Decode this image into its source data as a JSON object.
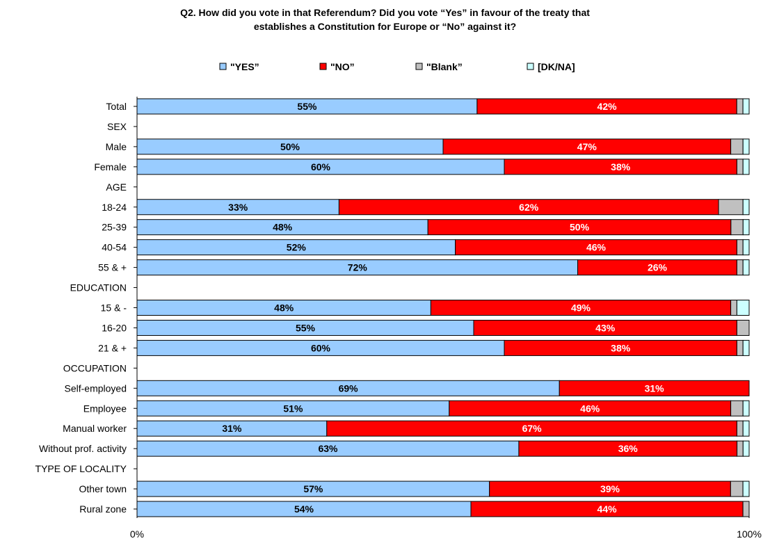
{
  "title_line1": "Q2. How did you vote in that Referendum? Did you vote “Yes” in favour of the treaty that",
  "title_line2": "establishes a Constitution for Europe or “No” against it?",
  "chart_data": {
    "type": "bar",
    "orientation": "horizontal",
    "stacked": true,
    "legend_position": "top",
    "categories": [
      "Total",
      "SEX",
      "Male",
      "Female",
      "AGE",
      "18-24",
      "25-39",
      "40-54",
      "55 & +",
      "EDUCATION",
      "15 & -",
      "16-20",
      "21 & +",
      "OCCUPATION",
      "Self-employed",
      "Employee",
      "Manual worker",
      "Without prof. activity",
      "TYPE OF LOCALITY",
      "Other town",
      "Rural zone"
    ],
    "series": [
      {
        "name": "\"YES”",
        "color": "#99ccff",
        "values": [
          55,
          null,
          50,
          60,
          null,
          33,
          48,
          52,
          72,
          null,
          48,
          55,
          60,
          null,
          69,
          51,
          31,
          63,
          null,
          57,
          54
        ]
      },
      {
        "name": "\"NO”",
        "color": "#ff0000",
        "values": [
          42,
          null,
          47,
          38,
          null,
          62,
          50,
          46,
          26,
          null,
          49,
          43,
          38,
          null,
          31,
          46,
          67,
          36,
          null,
          39,
          44
        ]
      },
      {
        "name": "\"Blank”",
        "color": "#c0c0c0",
        "values": [
          1,
          null,
          2,
          1,
          null,
          4,
          2,
          1,
          1,
          null,
          1,
          2,
          1,
          null,
          0,
          2,
          1,
          1,
          null,
          2,
          1
        ]
      },
      {
        "name": "[DK/NA]",
        "color": "#ccffff",
        "values": [
          1,
          null,
          1,
          1,
          null,
          1,
          1,
          1,
          1,
          null,
          2,
          0,
          1,
          null,
          0,
          1,
          1,
          1,
          null,
          1,
          0
        ]
      }
    ],
    "data_labels": {
      "YES": [
        "55%",
        "",
        "50%",
        "60%",
        "",
        "33%",
        "48%",
        "52%",
        "72%",
        "",
        "48%",
        "55%",
        "60%",
        "",
        "69%",
        "51%",
        "31%",
        "63%",
        "",
        "57%",
        "54%"
      ],
      "NO": [
        "42%",
        "",
        "47%",
        "38%",
        "",
        "62%",
        "50%",
        "46%",
        "26%",
        "",
        "49%",
        "43%",
        "38%",
        "",
        "31%",
        "46%",
        "67%",
        "36%",
        "",
        "39%",
        "44%"
      ]
    },
    "x_ticks": [
      "0%",
      "100%"
    ],
    "xlim": [
      0,
      100
    ],
    "grid": false
  }
}
